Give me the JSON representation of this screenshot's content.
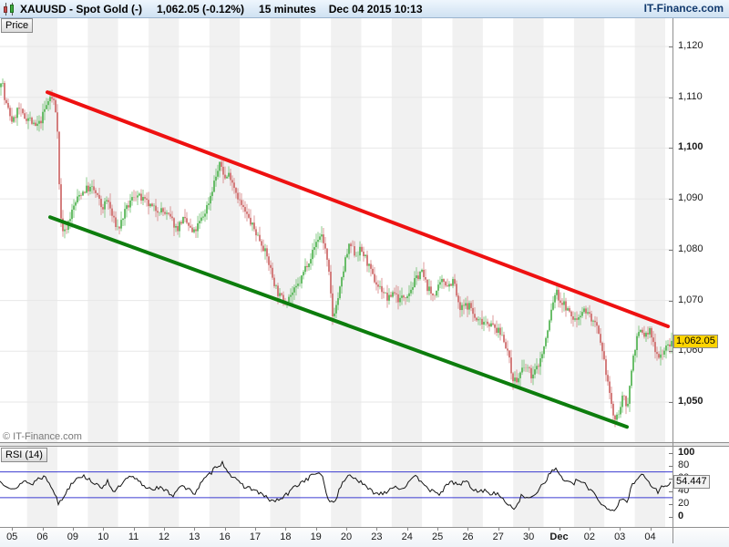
{
  "title_bar": {
    "symbol": "XAUUSD - Spot Gold (-)",
    "last_price": "1,062.05 (-0.12%)",
    "timeframe": "15 minutes",
    "datetime": "Dec 04 2015 10:13",
    "brand": "IT-Finance.com"
  },
  "price_pane": {
    "tab_label": "Price",
    "watermark": "© IT-Finance.com",
    "last_price_label": "1,062.05"
  },
  "rsi_pane": {
    "tab_label": "RSI (14)",
    "value_label": "54.447"
  },
  "colors": {
    "candle_up": "#5ab75a",
    "candle_down": "#d07070",
    "trend_resistance": "#ee1111",
    "trend_support": "#0d7d0d",
    "stripe": "#f1f1f1",
    "grid": "#e7e7e7",
    "rsi_line": "#141414",
    "rsi_level": "#3b3bd0",
    "last_price_bg": "#ffd400"
  },
  "chart_data": {
    "type": "candlestick",
    "title": "XAUUSD - Spot Gold, 15 minutes",
    "x_labels": [
      "05",
      "06",
      "09",
      "10",
      "11",
      "12",
      "13",
      "16",
      "17",
      "18",
      "19",
      "20",
      "23",
      "24",
      "25",
      "26",
      "27",
      "30",
      "Dec",
      "02",
      "03",
      "04"
    ],
    "bold_x_labels": [
      "Dec"
    ],
    "y_ticks": [
      {
        "v": 1120,
        "label": "1,120",
        "bold": false
      },
      {
        "v": 1110,
        "label": "1,110",
        "bold": false
      },
      {
        "v": 1100,
        "label": "1,100",
        "bold": true
      },
      {
        "v": 1090,
        "label": "1,090",
        "bold": false
      },
      {
        "v": 1080,
        "label": "1,080",
        "bold": false
      },
      {
        "v": 1070,
        "label": "1,070",
        "bold": false
      },
      {
        "v": 1060,
        "label": "1,060",
        "bold": false
      },
      {
        "v": 1050,
        "label": "1,050",
        "bold": true
      }
    ],
    "ylim": [
      1042,
      1123
    ],
    "last": 1062.05,
    "change_pct": -0.12,
    "price_path": [
      [
        0,
        1112
      ],
      [
        2,
        1115
      ],
      [
        4,
        1110
      ],
      [
        8,
        1108
      ],
      [
        14,
        1105
      ],
      [
        20,
        1108
      ],
      [
        26,
        1106
      ],
      [
        32,
        1106
      ],
      [
        38,
        1104
      ],
      [
        44,
        1105
      ],
      [
        50,
        1108
      ],
      [
        55,
        1110
      ],
      [
        60,
        1109
      ],
      [
        63,
        1104
      ],
      [
        66,
        1087
      ],
      [
        70,
        1083
      ],
      [
        76,
        1086
      ],
      [
        82,
        1089
      ],
      [
        88,
        1091
      ],
      [
        95,
        1092
      ],
      [
        102,
        1092
      ],
      [
        108,
        1090
      ],
      [
        112,
        1088
      ],
      [
        118,
        1090
      ],
      [
        124,
        1086
      ],
      [
        130,
        1084
      ],
      [
        136,
        1087
      ],
      [
        142,
        1089
      ],
      [
        148,
        1091
      ],
      [
        155,
        1090
      ],
      [
        162,
        1089
      ],
      [
        168,
        1088
      ],
      [
        175,
        1088
      ],
      [
        182,
        1087
      ],
      [
        188,
        1086
      ],
      [
        194,
        1084
      ],
      [
        200,
        1086
      ],
      [
        206,
        1085
      ],
      [
        212,
        1083
      ],
      [
        218,
        1085
      ],
      [
        224,
        1087
      ],
      [
        230,
        1090
      ],
      [
        236,
        1094
      ],
      [
        242,
        1097
      ],
      [
        247,
        1094
      ],
      [
        252,
        1095
      ],
      [
        258,
        1092
      ],
      [
        264,
        1089
      ],
      [
        270,
        1087
      ],
      [
        276,
        1085
      ],
      [
        282,
        1083
      ],
      [
        288,
        1081
      ],
      [
        294,
        1078
      ],
      [
        300,
        1074
      ],
      [
        306,
        1071
      ],
      [
        312,
        1070
      ],
      [
        318,
        1071
      ],
      [
        324,
        1072
      ],
      [
        330,
        1074
      ],
      [
        336,
        1077
      ],
      [
        342,
        1079
      ],
      [
        348,
        1082
      ],
      [
        353,
        1083
      ],
      [
        357,
        1080
      ],
      [
        361,
        1075
      ],
      [
        365,
        1067
      ],
      [
        369,
        1069
      ],
      [
        374,
        1073
      ],
      [
        379,
        1078
      ],
      [
        384,
        1081
      ],
      [
        390,
        1079
      ],
      [
        396,
        1080
      ],
      [
        402,
        1078
      ],
      [
        408,
        1075
      ],
      [
        414,
        1073
      ],
      [
        420,
        1072
      ],
      [
        426,
        1070
      ],
      [
        432,
        1072
      ],
      [
        438,
        1070
      ],
      [
        444,
        1071
      ],
      [
        450,
        1072
      ],
      [
        456,
        1074
      ],
      [
        462,
        1076
      ],
      [
        468,
        1073
      ],
      [
        474,
        1071
      ],
      [
        480,
        1072
      ],
      [
        486,
        1074
      ],
      [
        492,
        1073
      ],
      [
        498,
        1074
      ],
      [
        504,
        1068
      ],
      [
        510,
        1069
      ],
      [
        516,
        1069
      ],
      [
        522,
        1066
      ],
      [
        528,
        1066
      ],
      [
        534,
        1066
      ],
      [
        540,
        1065
      ],
      [
        546,
        1064
      ],
      [
        552,
        1063
      ],
      [
        557,
        1060
      ],
      [
        562,
        1055
      ],
      [
        567,
        1054
      ],
      [
        572,
        1056
      ],
      [
        578,
        1057
      ],
      [
        584,
        1055
      ],
      [
        590,
        1057
      ],
      [
        596,
        1060
      ],
      [
        601,
        1064
      ],
      [
        606,
        1069
      ],
      [
        610,
        1072
      ],
      [
        614,
        1070
      ],
      [
        620,
        1069
      ],
      [
        626,
        1067
      ],
      [
        632,
        1066
      ],
      [
        638,
        1068
      ],
      [
        644,
        1068
      ],
      [
        650,
        1066
      ],
      [
        656,
        1064
      ],
      [
        660,
        1060
      ],
      [
        664,
        1057
      ],
      [
        668,
        1053
      ],
      [
        672,
        1048
      ],
      [
        676,
        1046
      ],
      [
        680,
        1049
      ],
      [
        684,
        1051
      ],
      [
        688,
        1049
      ],
      [
        691,
        1053
      ],
      [
        694,
        1058
      ],
      [
        698,
        1062
      ],
      [
        703,
        1064
      ],
      [
        708,
        1063
      ],
      [
        713,
        1064
      ],
      [
        718,
        1061
      ],
      [
        723,
        1059
      ],
      [
        728,
        1060
      ],
      [
        733,
        1061
      ],
      [
        737,
        1062.05
      ]
    ],
    "trendlines": [
      {
        "name": "resistance",
        "from_x": 52,
        "from_price": 1111,
        "to_x": 733,
        "to_price": 1064.9
      },
      {
        "name": "support",
        "from_x": 55,
        "from_price": 1086.4,
        "to_x": 688,
        "to_price": 1045.1
      }
    ],
    "indicator": {
      "type": "line",
      "name": "RSI (14)",
      "last": 54.447,
      "range": [
        0,
        100
      ],
      "levels": [
        70,
        30
      ],
      "y_ticks": [
        {
          "v": 100,
          "label": "100",
          "bold": true
        },
        {
          "v": 80,
          "label": "80",
          "bold": false
        },
        {
          "v": 60,
          "label": "60",
          "bold": false
        },
        {
          "v": 40,
          "label": "40",
          "bold": false
        },
        {
          "v": 20,
          "label": "20",
          "bold": false
        },
        {
          "v": 0,
          "label": "0",
          "bold": true
        }
      ],
      "path": [
        [
          0,
          55
        ],
        [
          10,
          48
        ],
        [
          18,
          42
        ],
        [
          26,
          58
        ],
        [
          34,
          50
        ],
        [
          42,
          60
        ],
        [
          50,
          63
        ],
        [
          58,
          45
        ],
        [
          64,
          20
        ],
        [
          70,
          32
        ],
        [
          78,
          52
        ],
        [
          86,
          64
        ],
        [
          94,
          62
        ],
        [
          102,
          55
        ],
        [
          110,
          44
        ],
        [
          118,
          56
        ],
        [
          126,
          38
        ],
        [
          134,
          52
        ],
        [
          142,
          62
        ],
        [
          150,
          58
        ],
        [
          158,
          48
        ],
        [
          166,
          44
        ],
        [
          174,
          46
        ],
        [
          182,
          40
        ],
        [
          190,
          34
        ],
        [
          198,
          50
        ],
        [
          206,
          42
        ],
        [
          214,
          38
        ],
        [
          222,
          55
        ],
        [
          230,
          66
        ],
        [
          238,
          80
        ],
        [
          244,
          84
        ],
        [
          252,
          68
        ],
        [
          260,
          55
        ],
        [
          268,
          48
        ],
        [
          276,
          44
        ],
        [
          284,
          38
        ],
        [
          292,
          30
        ],
        [
          300,
          24
        ],
        [
          308,
          28
        ],
        [
          316,
          36
        ],
        [
          324,
          48
        ],
        [
          332,
          55
        ],
        [
          340,
          62
        ],
        [
          348,
          70
        ],
        [
          354,
          60
        ],
        [
          360,
          28
        ],
        [
          366,
          22
        ],
        [
          372,
          40
        ],
        [
          378,
          58
        ],
        [
          384,
          66
        ],
        [
          392,
          58
        ],
        [
          400,
          48
        ],
        [
          408,
          40
        ],
        [
          416,
          36
        ],
        [
          424,
          40
        ],
        [
          432,
          48
        ],
        [
          440,
          44
        ],
        [
          448,
          52
        ],
        [
          456,
          62
        ],
        [
          464,
          55
        ],
        [
          472,
          42
        ],
        [
          480,
          34
        ],
        [
          488,
          45
        ],
        [
          496,
          55
        ],
        [
          504,
          50
        ],
        [
          512,
          56
        ],
        [
          520,
          40
        ],
        [
          528,
          42
        ],
        [
          536,
          38
        ],
        [
          544,
          36
        ],
        [
          552,
          30
        ],
        [
          558,
          16
        ],
        [
          565,
          14
        ],
        [
          572,
          32
        ],
        [
          580,
          28
        ],
        [
          588,
          38
        ],
        [
          596,
          52
        ],
        [
          604,
          68
        ],
        [
          610,
          76
        ],
        [
          616,
          62
        ],
        [
          622,
          55
        ],
        [
          628,
          50
        ],
        [
          634,
          58
        ],
        [
          640,
          52
        ],
        [
          646,
          45
        ],
        [
          652,
          38
        ],
        [
          658,
          24
        ],
        [
          664,
          16
        ],
        [
          670,
          10
        ],
        [
          676,
          14
        ],
        [
          682,
          28
        ],
        [
          688,
          22
        ],
        [
          693,
          48
        ],
        [
          698,
          60
        ],
        [
          704,
          66
        ],
        [
          710,
          58
        ],
        [
          716,
          46
        ],
        [
          722,
          40
        ],
        [
          728,
          48
        ],
        [
          733,
          52
        ],
        [
          737,
          54.447
        ]
      ]
    }
  }
}
